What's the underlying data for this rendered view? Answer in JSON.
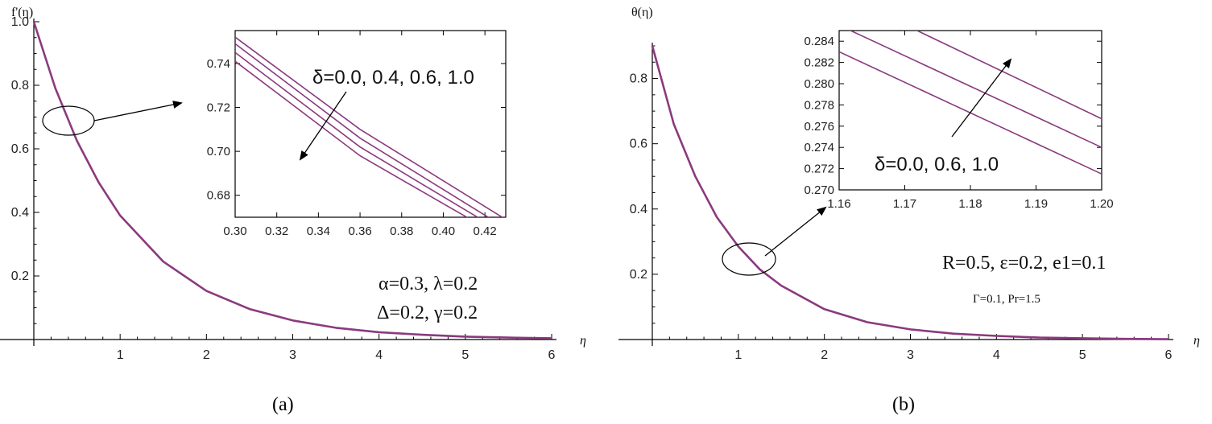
{
  "chart_data": [
    {
      "type": "line",
      "panel_label": "(a)",
      "ylabel": "f'(η)",
      "xlabel": "η",
      "xlim": [
        0,
        6
      ],
      "ylim": [
        0,
        1.0
      ],
      "x_ticks": [
        "1",
        "2",
        "3",
        "4",
        "5",
        "6"
      ],
      "y_ticks": [
        "0.2",
        "0.4",
        "0.6",
        "0.8",
        "1.0"
      ],
      "line_color": "#8B3A7E",
      "series": [
        {
          "x": [
            0,
            0.25,
            0.5,
            0.75,
            1.0,
            1.5,
            2.0,
            2.5,
            3.0,
            3.5,
            4.0,
            4.5,
            5.0,
            5.5,
            6.0
          ],
          "y": [
            1.0,
            0.79,
            0.625,
            0.495,
            0.39,
            0.245,
            0.153,
            0.096,
            0.06,
            0.037,
            0.023,
            0.015,
            0.009,
            0.006,
            0.004
          ]
        }
      ],
      "annotations": [
        {
          "text": "α=0.3, λ=0.2"
        },
        {
          "text": "Δ=0.2, γ=0.2"
        }
      ],
      "inset": {
        "xlim": [
          0.3,
          0.43
        ],
        "ylim": [
          0.67,
          0.755
        ],
        "x_ticks": [
          "0.30",
          "0.32",
          "0.34",
          "0.36",
          "0.38",
          "0.40",
          "0.42"
        ],
        "y_ticks": [
          "0.68",
          "0.70",
          "0.72",
          "0.74"
        ],
        "label": "δ=0.0, 0.4, 0.6, 1.0",
        "series": [
          {
            "name": "δ=0.0",
            "x": [
              0.3,
              0.36,
              0.43
            ],
            "y": [
              0.752,
              0.71,
              0.669
            ]
          },
          {
            "name": "δ=0.4",
            "x": [
              0.3,
              0.36,
              0.425
            ],
            "y": [
              0.749,
              0.706,
              0.668
            ]
          },
          {
            "name": "δ=0.6",
            "x": [
              0.3,
              0.36,
              0.42
            ],
            "y": [
              0.745,
              0.702,
              0.668
            ]
          },
          {
            "name": "δ=1.0",
            "x": [
              0.3,
              0.36,
              0.415
            ],
            "y": [
              0.741,
              0.698,
              0.668
            ]
          }
        ]
      }
    },
    {
      "type": "line",
      "panel_label": "(b)",
      "ylabel": "θ(η)",
      "xlabel": "η",
      "xlim": [
        0,
        6
      ],
      "ylim": [
        0,
        0.9
      ],
      "x_ticks": [
        "1",
        "2",
        "3",
        "4",
        "5",
        "6"
      ],
      "y_ticks": [
        "0.2",
        "0.4",
        "0.6",
        "0.8"
      ],
      "line_color": "#8B3A7E",
      "series": [
        {
          "x": [
            0,
            0.25,
            0.5,
            0.75,
            1.0,
            1.25,
            1.5,
            2.0,
            2.5,
            3.0,
            3.5,
            4.0,
            4.5,
            5.0,
            5.5,
            6.0
          ],
          "y": [
            0.9,
            0.66,
            0.5,
            0.375,
            0.285,
            0.215,
            0.165,
            0.093,
            0.053,
            0.031,
            0.018,
            0.011,
            0.006,
            0.004,
            0.002,
            0.001
          ]
        }
      ],
      "annotations": [
        {
          "text": "R=0.5, ε=0.2, e1=0.1"
        },
        {
          "text": "Γ=0.1, Pr=1.5"
        }
      ],
      "inset": {
        "xlim": [
          1.16,
          1.2
        ],
        "ylim": [
          0.27,
          0.285
        ],
        "x_ticks": [
          "1.16",
          "1.17",
          "1.18",
          "1.19",
          "1.20"
        ],
        "y_ticks": [
          "0.270",
          "0.272",
          "0.274",
          "0.276",
          "0.278",
          "0.280",
          "0.282",
          "0.284"
        ],
        "label": "δ=0.0, 0.6, 1.0",
        "series": [
          {
            "name": "δ=0.0",
            "x": [
              1.16,
              1.2
            ],
            "y": [
              0.283,
              0.2715
            ]
          },
          {
            "name": "δ=0.6",
            "x": [
              1.16,
              1.2
            ],
            "y": [
              0.2855,
              0.274
            ]
          },
          {
            "name": "δ=1.0",
            "x": [
              1.16,
              1.2
            ],
            "y": [
              0.2885,
              0.2767
            ]
          }
        ]
      }
    }
  ]
}
